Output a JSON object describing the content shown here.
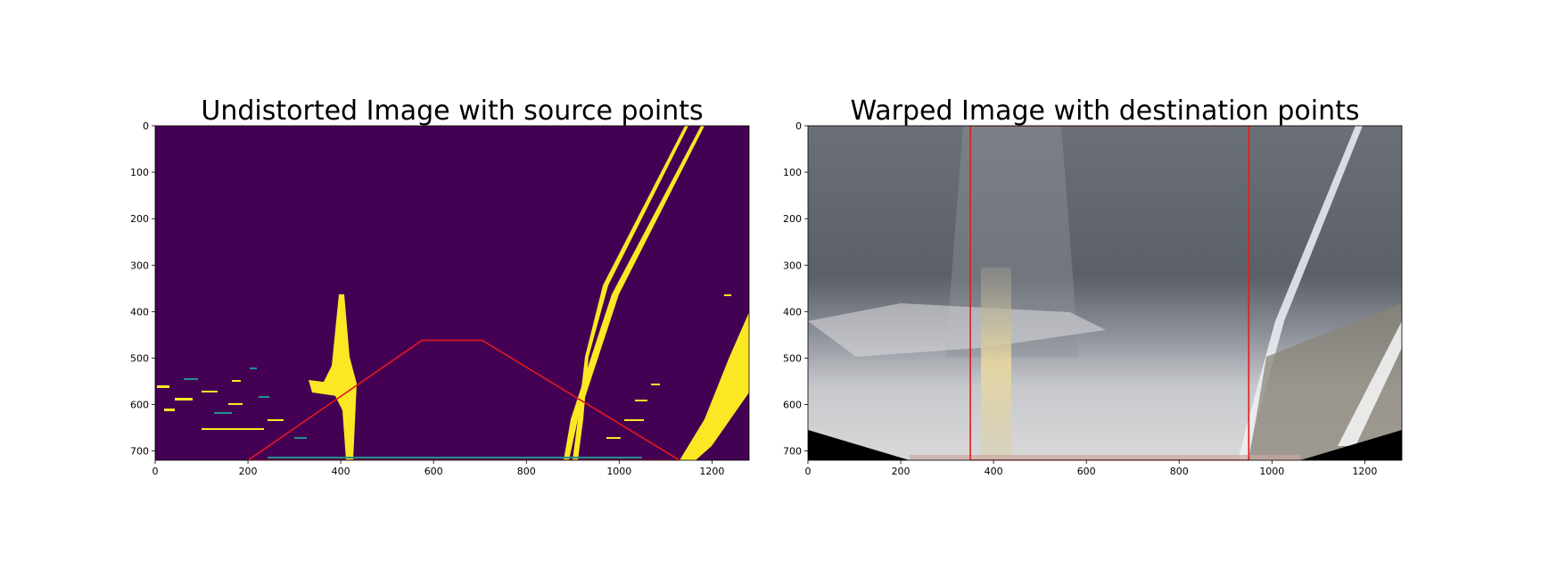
{
  "chart_data": [
    {
      "type": "image",
      "title": "Undistorted Image with source points",
      "image_content": "binary thresholded road image (lane lines highlighted)",
      "colors": {
        "background": "#440154",
        "foreground": "#fde725",
        "mid": "#21918c",
        "overlay_line": "#e31a1c"
      },
      "xlim": [
        0,
        1280
      ],
      "ylim": [
        720,
        0
      ],
      "xticks": [
        0,
        200,
        400,
        600,
        800,
        1000,
        1200
      ],
      "yticks": [
        0,
        100,
        200,
        300,
        400,
        500,
        600,
        700
      ],
      "overlay_polygon": [
        [
          200,
          720
        ],
        [
          575,
          462
        ],
        [
          705,
          462
        ],
        [
          1130,
          720
        ]
      ]
    },
    {
      "type": "image",
      "title": "Warped Image with destination points",
      "image_content": "perspective-warped (bird's-eye) road image",
      "colors": {
        "overlay_line": "#e31a1c"
      },
      "xlim": [
        0,
        1280
      ],
      "ylim": [
        720,
        0
      ],
      "xticks": [
        0,
        200,
        400,
        600,
        800,
        1000,
        1200
      ],
      "yticks": [
        0,
        100,
        200,
        300,
        400,
        500,
        600,
        700
      ],
      "overlay_polygon": [
        [
          350,
          0
        ],
        [
          950,
          0
        ],
        [
          950,
          720
        ],
        [
          350,
          720
        ]
      ]
    }
  ]
}
